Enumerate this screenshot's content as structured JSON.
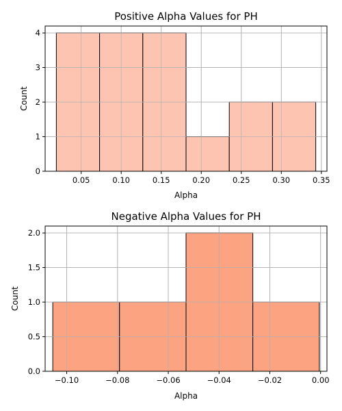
{
  "chart_data": [
    {
      "type": "bar",
      "title": "Positive Alpha Values for PH",
      "xlabel": "Alpha",
      "ylabel": "Count",
      "bin_edges": [
        0.019,
        0.073,
        0.127,
        0.181,
        0.235,
        0.289,
        0.343
      ],
      "values": [
        4,
        4,
        4,
        1,
        2,
        2
      ],
      "xlim": [
        0.005,
        0.357
      ],
      "ylim": [
        0,
        4.2
      ],
      "xticks": [
        0.05,
        0.1,
        0.15,
        0.2,
        0.25,
        0.3,
        0.35
      ],
      "xtick_labels": [
        "0.05",
        "0.10",
        "0.15",
        "0.20",
        "0.25",
        "0.30",
        "0.35"
      ],
      "yticks": [
        0,
        1,
        2,
        3,
        4
      ],
      "ytick_labels": [
        "0",
        "1",
        "2",
        "3",
        "4"
      ],
      "grid": true,
      "color": "#fdc5b1"
    },
    {
      "type": "bar",
      "title": "Negative Alpha Values for PH",
      "xlabel": "Alpha",
      "ylabel": "Count",
      "bin_edges": [
        -0.1055,
        -0.0792,
        -0.053,
        -0.0267,
        -0.0005
      ],
      "values": [
        1,
        1,
        2,
        1
      ],
      "xlim": [
        -0.1085,
        0.0025
      ],
      "ylim": [
        0,
        2.1
      ],
      "xticks": [
        -0.1,
        -0.08,
        -0.06,
        -0.04,
        -0.02,
        0.0
      ],
      "xtick_labels": [
        "−0.10",
        "−0.08",
        "−0.06",
        "−0.04",
        "−0.02",
        "0.00"
      ],
      "yticks": [
        0,
        0.5,
        1.0,
        1.5,
        2.0
      ],
      "ytick_labels": [
        "0.0",
        "0.5",
        "1.0",
        "1.5",
        "2.0"
      ],
      "grid": true,
      "color": "#fca382"
    }
  ]
}
